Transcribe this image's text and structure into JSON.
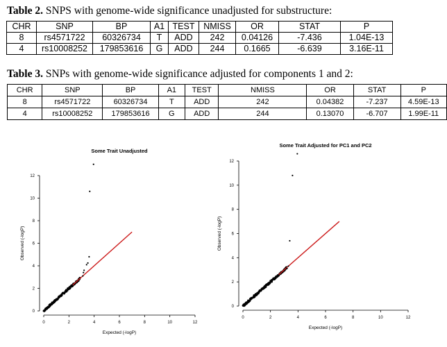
{
  "table2": {
    "caption_bold": "Table 2.",
    "caption_rest": " SNPS with genome-wide significance unadjusted for substructure:",
    "headers": [
      "CHR",
      "SNP",
      "BP",
      "A1",
      "TEST",
      "NMISS",
      "OR",
      "STAT",
      "P"
    ],
    "rows": [
      [
        "8",
        "rs4571722",
        "60326734",
        "T",
        "ADD",
        "242",
        "0.04126",
        "-7.436",
        "1.04E-13"
      ],
      [
        "4",
        "rs10008252",
        "179853616",
        "G",
        "ADD",
        "244",
        "0.1665",
        "-6.639",
        "3.16E-11"
      ]
    ]
  },
  "table3": {
    "caption_bold": "Table 3.",
    "caption_rest": " SNPs with genome-wide significance adjusted for components 1 and 2:",
    "headers": [
      "CHR",
      "SNP",
      "BP",
      "A1",
      "TEST",
      "NMISS",
      "OR",
      "STAT",
      "P"
    ],
    "rows": [
      [
        "8",
        "rs4571722",
        "60326734",
        "T",
        "ADD",
        "242",
        "0.04382",
        "-7.237",
        "4.59E-13"
      ],
      [
        "4",
        "rs10008252",
        "179853616",
        "G",
        "ADD",
        "244",
        "0.13070",
        "-6.707",
        "1.99E-11"
      ]
    ]
  },
  "chart_data": [
    {
      "type": "scatter",
      "title": "Some Trait Unadjusted",
      "xlabel": "Expected (-logP)",
      "ylabel": "Observed (-logP)",
      "xlim": [
        0,
        12
      ],
      "ylim": [
        0,
        12
      ],
      "xticks": [
        0,
        2,
        4,
        6,
        8,
        10,
        12
      ],
      "yticks": [
        0,
        2,
        4,
        6,
        8,
        10,
        12
      ],
      "reference_line": {
        "x": [
          2.3,
          7
        ],
        "y": [
          2.3,
          7
        ],
        "color": "#cc1a1a"
      },
      "point_color": "#000000",
      "points": [
        [
          3.1,
          3.1
        ],
        [
          3.15,
          3.4
        ],
        [
          3.2,
          3.6
        ],
        [
          3.4,
          4.1
        ],
        [
          3.5,
          4.25
        ],
        [
          3.6,
          4.8
        ],
        [
          3.65,
          10.6
        ],
        [
          3.95,
          13.0
        ]
      ]
    },
    {
      "type": "scatter",
      "title": "Some Trait Adjusted for PC1 and PC2",
      "xlabel": "Expected (-logP)",
      "ylabel": "Observed (-logP)",
      "xlim": [
        0,
        12
      ],
      "ylim": [
        0,
        12
      ],
      "xticks": [
        0,
        2,
        4,
        6,
        8,
        10,
        12
      ],
      "yticks": [
        0,
        2,
        4,
        6,
        8,
        10,
        12
      ],
      "reference_line": {
        "x": [
          2.6,
          7
        ],
        "y": [
          2.6,
          7
        ],
        "color": "#cc1a1a"
      },
      "point_color": "#000000",
      "points": [
        [
          3.2,
          3.1
        ],
        [
          3.3,
          3.3
        ],
        [
          3.4,
          5.4
        ],
        [
          3.6,
          10.8
        ],
        [
          3.95,
          12.6
        ]
      ]
    }
  ]
}
